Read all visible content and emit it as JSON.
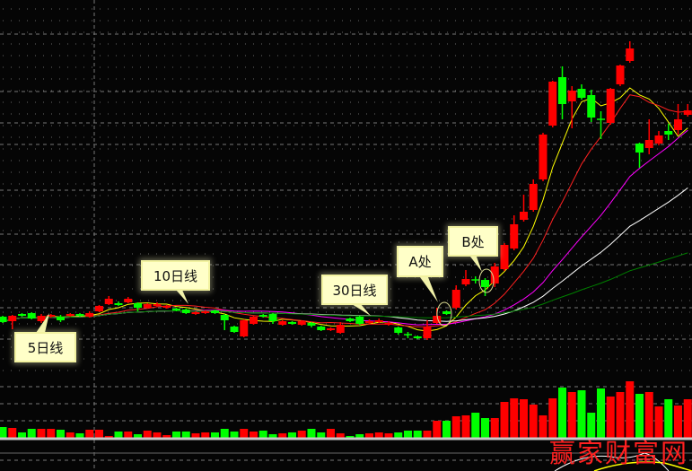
{
  "chart_data": {
    "type": "candlestick",
    "title": "",
    "xlabel": "",
    "ylabel": "",
    "grid": true,
    "colors": {
      "up": "#ff0000",
      "down": "#00ff00",
      "background": "#050505",
      "grid": "#777777"
    },
    "moving_averages": [
      {
        "period": 5,
        "color": "#ffff00"
      },
      {
        "period": 10,
        "color": "#ff2020"
      },
      {
        "period": 20,
        "color": "#ff00ff"
      },
      {
        "period": 30,
        "color": "#ffffff"
      },
      {
        "period": 60,
        "color": "#008000"
      }
    ],
    "ohlc": [
      [
        16.7,
        16.1,
        16.8,
        16.0
      ],
      [
        16.2,
        16.8,
        16.9,
        15.3
      ],
      [
        17.0,
        16.8,
        17.1,
        16.7
      ],
      [
        17.1,
        16.5,
        17.2,
        16.4
      ],
      [
        16.2,
        16.8,
        17.0,
        16.0
      ],
      [
        16.7,
        16.9,
        17.0,
        16.6
      ],
      [
        16.7,
        16.3,
        16.9,
        16.1
      ],
      [
        16.8,
        17.0,
        17.1,
        16.7
      ],
      [
        17.0,
        16.8,
        17.1,
        16.7
      ],
      [
        16.7,
        17.1,
        17.3,
        16.6
      ],
      [
        17.3,
        17.9,
        18.0,
        17.2
      ],
      [
        18.1,
        18.7,
        19.0,
        18.0
      ],
      [
        18.2,
        18.0,
        18.4,
        17.9
      ],
      [
        18.3,
        18.7,
        18.9,
        18.2
      ],
      [
        18.2,
        17.7,
        18.3,
        17.3
      ],
      [
        17.7,
        18.1,
        18.2,
        17.6
      ],
      [
        17.9,
        18.1,
        18.3,
        17.8
      ],
      [
        17.7,
        17.9,
        18.0,
        17.6
      ],
      [
        17.6,
        17.4,
        17.7,
        17.3
      ],
      [
        17.5,
        17.1,
        17.6,
        17.0
      ],
      [
        17.0,
        17.2,
        17.3,
        16.9
      ],
      [
        17.1,
        17.3,
        17.4,
        17.0
      ],
      [
        17.4,
        17.1,
        17.5,
        17.0
      ],
      [
        16.9,
        16.3,
        17.0,
        15.2
      ],
      [
        15.6,
        15.0,
        15.7,
        14.9
      ],
      [
        14.5,
        16.3,
        16.4,
        14.4
      ],
      [
        15.9,
        16.7,
        16.8,
        15.8
      ],
      [
        16.9,
        16.7,
        17.0,
        16.6
      ],
      [
        17.0,
        16.2,
        17.1,
        15.9
      ],
      [
        15.8,
        16.2,
        16.3,
        15.7
      ],
      [
        16.1,
        15.9,
        16.2,
        15.8
      ],
      [
        15.8,
        16.2,
        16.3,
        15.7
      ],
      [
        16.0,
        15.7,
        16.1,
        15.5
      ],
      [
        15.6,
        15.2,
        15.7,
        15.1
      ],
      [
        15.2,
        15.4,
        15.5,
        15.1
      ],
      [
        14.9,
        15.8,
        16.1,
        14.8
      ],
      [
        16.5,
        16.2,
        16.6,
        16.1
      ],
      [
        16.7,
        15.9,
        16.8,
        15.8
      ],
      [
        16.0,
        16.2,
        16.4,
        15.9
      ],
      [
        16.1,
        16.3,
        16.5,
        16.0
      ],
      [
        15.8,
        16.0,
        16.2,
        15.7
      ],
      [
        15.5,
        14.9,
        15.6,
        14.7
      ],
      [
        14.7,
        14.7,
        15.0,
        14.3
      ],
      [
        14.5,
        14.3,
        14.6,
        14.2
      ],
      [
        14.3,
        15.6,
        16.3,
        14.1
      ],
      [
        16.0,
        16.8,
        17.7,
        15.9
      ],
      [
        17.3,
        17.0,
        17.4,
        16.9
      ],
      [
        17.7,
        19.7,
        20.2,
        17.5
      ],
      [
        20.3,
        20.9,
        21.9,
        20.1
      ],
      [
        20.8,
        20.8,
        21.2,
        20.4
      ],
      [
        20.8,
        20.0,
        21.0,
        19.0
      ],
      [
        20.4,
        22.3,
        22.7,
        20.0
      ],
      [
        22.0,
        24.7,
        24.9,
        21.8
      ],
      [
        24.3,
        27.0,
        28.0,
        24.1
      ],
      [
        27.5,
        28.4,
        30.3,
        27.3
      ],
      [
        28.6,
        31.5,
        32.0,
        28.4
      ],
      [
        32.0,
        37.0,
        37.2,
        31.8
      ],
      [
        38.0,
        42.9,
        43.0,
        37.8
      ],
      [
        43.4,
        40.4,
        44.6,
        38.7
      ],
      [
        40.7,
        41.9,
        42.4,
        37.7
      ],
      [
        42.1,
        41.1,
        42.6,
        40.9
      ],
      [
        41.4,
        38.9,
        42.0,
        38.4
      ],
      [
        38.7,
        38.7,
        39.6,
        36.5
      ],
      [
        38.3,
        42.1,
        42.2,
        38.1
      ],
      [
        42.6,
        44.7,
        44.8,
        42.4
      ],
      [
        45.2,
        46.6,
        47.4,
        45.0
      ],
      [
        36.0,
        35.0,
        36.1,
        33.3
      ],
      [
        35.5,
        36.4,
        38.7,
        34.8
      ],
      [
        36.0,
        36.9,
        37.4,
        35.8
      ],
      [
        37.4,
        37.0,
        38.2,
        36.4
      ],
      [
        37.5,
        38.7,
        40.4,
        37.0
      ],
      [
        39.2,
        39.7,
        40.4,
        39.0
      ]
    ],
    "volume": [
      12,
      11,
      6,
      10,
      10,
      10,
      9,
      6,
      5,
      9,
      9,
      2,
      7,
      7,
      4,
      8,
      6,
      3,
      7,
      7,
      5,
      6,
      6,
      10,
      7,
      10,
      7,
      8,
      4,
      5,
      6,
      8,
      10,
      6,
      10,
      5,
      2,
      4,
      5,
      6,
      5,
      6,
      8,
      8,
      8,
      19,
      19,
      24,
      25,
      28,
      22,
      22,
      40,
      44,
      43,
      37,
      25,
      44,
      56,
      51,
      53,
      28,
      55,
      46,
      51,
      63,
      49,
      51,
      35,
      43,
      36,
      43
    ],
    "annotations": [
      {
        "text": "5日线",
        "points_to": "MA5"
      },
      {
        "text": "10日线",
        "points_to": "MA10"
      },
      {
        "text": "30日线",
        "points_to": "MA30"
      },
      {
        "text": "A处",
        "points_to": "candle 47"
      },
      {
        "text": "B处",
        "points_to": "candle 51"
      }
    ]
  },
  "labels": {
    "ma5": "5日线",
    "ma10": "10日线",
    "ma30": "30日线",
    "point_a": "A处",
    "point_b": "B处"
  },
  "watermark": "赢家财富网"
}
